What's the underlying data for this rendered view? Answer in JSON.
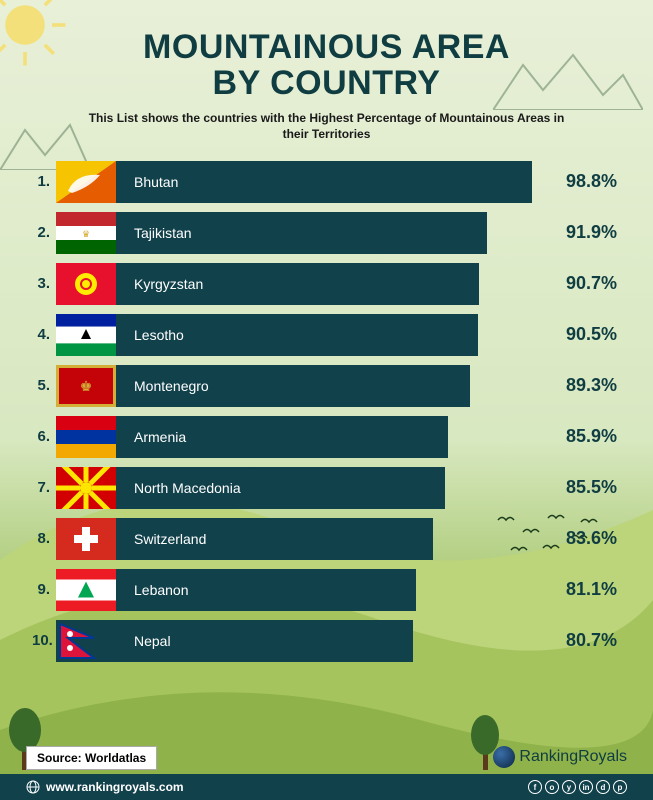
{
  "title_line1": "MOUNTAINOUS AREA",
  "title_line2": "BY COUNTRY",
  "subtitle": "This List shows the countries with the Highest Percentage of Mountainous Areas in their Territories",
  "bar_color": "#11414b",
  "title_color": "#0f3d42",
  "max_bar_width_pct": 84,
  "value_scale_min": 80,
  "value_scale_max": 100,
  "countries": [
    {
      "rank": "1.",
      "name": "Bhutan",
      "value": 98.8,
      "pct_label": "98.8%",
      "flag": "bhutan"
    },
    {
      "rank": "2.",
      "name": "Tajikistan",
      "value": 91.9,
      "pct_label": "91.9%",
      "flag": "tajikistan"
    },
    {
      "rank": "3.",
      "name": "Kyrgyzstan",
      "value": 90.7,
      "pct_label": "90.7%",
      "flag": "kyrgyzstan"
    },
    {
      "rank": "4.",
      "name": "Lesotho",
      "value": 90.5,
      "pct_label": "90.5%",
      "flag": "lesotho"
    },
    {
      "rank": "5.",
      "name": "Montenegro",
      "value": 89.3,
      "pct_label": "89.3%",
      "flag": "montenegro"
    },
    {
      "rank": "6.",
      "name": "Armenia",
      "value": 85.9,
      "pct_label": "85.9%",
      "flag": "armenia"
    },
    {
      "rank": "7.",
      "name": "North Macedonia",
      "value": 85.5,
      "pct_label": "85.5%",
      "flag": "macedonia"
    },
    {
      "rank": "8.",
      "name": "Switzerland",
      "value": 83.6,
      "pct_label": "83.6%",
      "flag": "switzerland"
    },
    {
      "rank": "9.",
      "name": "Lebanon",
      "value": 81.1,
      "pct_label": "81.1%",
      "flag": "lebanon"
    },
    {
      "rank": "10.",
      "name": "Nepal",
      "value": 80.7,
      "pct_label": "80.7%",
      "flag": "nepal"
    }
  ],
  "source_label": "Source: Worldatlas",
  "brand_name": "RankingRoyals",
  "website": "www.rankingroyals.com",
  "social_icons": [
    "f",
    "o",
    "y",
    "in",
    "d",
    "p"
  ]
}
